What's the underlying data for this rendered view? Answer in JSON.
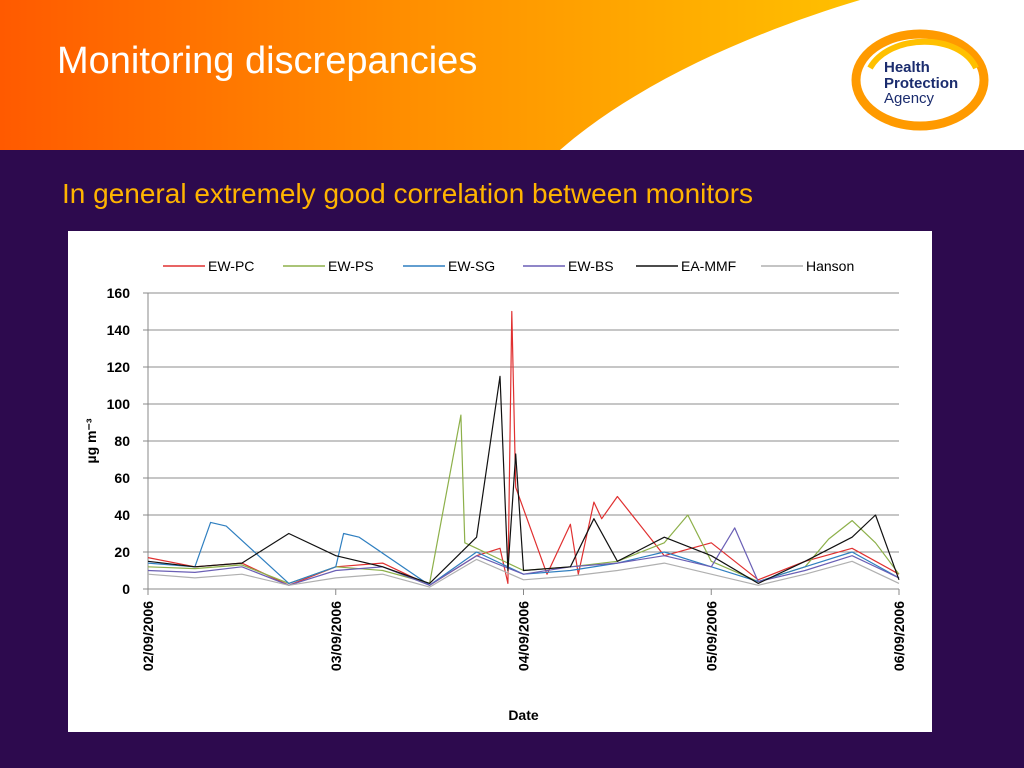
{
  "slide": {
    "title": "Monitoring discrepancies",
    "subtitle": "In general extremely good correlation between monitors"
  },
  "logo": {
    "line1": "Health",
    "line2": "Protection",
    "line3": "Agency"
  },
  "colors": {
    "background": "#2d0a4e",
    "header_orange": "#ff7a00",
    "header_yellow": "#ffb400",
    "subtitle": "#ffb400",
    "logo_blue": "#1b2c6e"
  },
  "chart_data": {
    "type": "line",
    "xlabel": "Date",
    "ylabel": "µg m⁻³",
    "ylim": [
      0,
      160
    ],
    "yticks": [
      0,
      20,
      40,
      60,
      80,
      100,
      120,
      140,
      160
    ],
    "xticks": [
      "02/09/2006",
      "03/09/2006",
      "04/09/2006",
      "05/09/2006",
      "06/09/2006"
    ],
    "xlim": [
      "02/09/2006",
      "06/09/2006"
    ],
    "grid": "horizontal",
    "legend_position": "top",
    "series": [
      {
        "name": "EW-PC",
        "color": "#e03030",
        "x": [
          "02/09/2006 00:00",
          "02/09/2006 06:00",
          "02/09/2006 12:00",
          "02/09/2006 18:00",
          "03/09/2006 00:00",
          "03/09/2006 06:00",
          "03/09/2006 12:00",
          "03/09/2006 18:00",
          "03/09/2006 21:00",
          "03/09/2006 22:00",
          "03/09/2006 22:30",
          "03/09/2006 23:00",
          "04/09/2006 03:00",
          "04/09/2006 06:00",
          "04/09/2006 07:00",
          "04/09/2006 09:00",
          "04/09/2006 10:00",
          "04/09/2006 12:00",
          "04/09/2006 18:00",
          "05/09/2006 00:00",
          "05/09/2006 06:00",
          "05/09/2006 12:00",
          "05/09/2006 18:00",
          "06/09/2006 00:00"
        ],
        "values": [
          17,
          12,
          14,
          2,
          12,
          14,
          2,
          18,
          22,
          3,
          150,
          55,
          8,
          35,
          8,
          47,
          38,
          50,
          18,
          25,
          5,
          15,
          22,
          8
        ]
      },
      {
        "name": "EW-PS",
        "color": "#8db04a",
        "x": [
          "02/09/2006 00:00",
          "02/09/2006 06:00",
          "02/09/2006 12:00",
          "02/09/2006 18:00",
          "03/09/2006 00:00",
          "03/09/2006 06:00",
          "03/09/2006 12:00",
          "03/09/2006 16:00",
          "03/09/2006 16:30",
          "03/09/2006 18:00",
          "04/09/2006 00:00",
          "04/09/2006 06:00",
          "04/09/2006 12:00",
          "04/09/2006 18:00",
          "04/09/2006 21:00",
          "05/09/2006 00:00",
          "05/09/2006 06:00",
          "05/09/2006 12:00",
          "05/09/2006 15:00",
          "05/09/2006 18:00",
          "05/09/2006 21:00",
          "06/09/2006 00:00"
        ],
        "values": [
          12,
          11,
          13,
          3,
          12,
          10,
          3,
          94,
          25,
          22,
          10,
          12,
          15,
          25,
          40,
          15,
          4,
          12,
          27,
          37,
          25,
          8
        ]
      },
      {
        "name": "EW-SG",
        "color": "#2f7fc0",
        "x": [
          "02/09/2006 00:00",
          "02/09/2006 06:00",
          "02/09/2006 08:00",
          "02/09/2006 10:00",
          "02/09/2006 18:00",
          "03/09/2006 00:00",
          "03/09/2006 01:00",
          "03/09/2006 03:00",
          "03/09/2006 12:00",
          "03/09/2006 18:00",
          "04/09/2006 00:00",
          "04/09/2006 06:00",
          "04/09/2006 12:00",
          "04/09/2006 18:00",
          "05/09/2006 00:00",
          "05/09/2006 06:00",
          "05/09/2006 12:00",
          "05/09/2006 18:00",
          "06/09/2006 00:00"
        ],
        "values": [
          14,
          12,
          36,
          34,
          3,
          12,
          30,
          28,
          2,
          20,
          8,
          10,
          14,
          20,
          12,
          4,
          12,
          20,
          6
        ]
      },
      {
        "name": "EW-BS",
        "color": "#6a5fb5",
        "x": [
          "02/09/2006 00:00",
          "02/09/2006 06:00",
          "02/09/2006 12:00",
          "02/09/2006 18:00",
          "03/09/2006 00:00",
          "03/09/2006 06:00",
          "03/09/2006 12:00",
          "03/09/2006 18:00",
          "04/09/2006 00:00",
          "04/09/2006 06:00",
          "04/09/2006 12:00",
          "04/09/2006 18:00",
          "05/09/2006 00:00",
          "05/09/2006 03:00",
          "05/09/2006 06:00",
          "05/09/2006 12:00",
          "05/09/2006 18:00",
          "06/09/2006 00:00"
        ],
        "values": [
          10,
          9,
          12,
          2,
          10,
          12,
          2,
          18,
          8,
          12,
          14,
          18,
          12,
          33,
          4,
          10,
          18,
          6
        ]
      },
      {
        "name": "EA-MMF",
        "color": "#111111",
        "x": [
          "02/09/2006 00:00",
          "02/09/2006 06:00",
          "02/09/2006 12:00",
          "02/09/2006 18:00",
          "03/09/2006 00:00",
          "03/09/2006 06:00",
          "03/09/2006 12:00",
          "03/09/2006 18:00",
          "03/09/2006 21:00",
          "03/09/2006 22:00",
          "03/09/2006 23:00",
          "04/09/2006 00:00",
          "04/09/2006 06:00",
          "04/09/2006 09:00",
          "04/09/2006 12:00",
          "04/09/2006 18:00",
          "05/09/2006 00:00",
          "05/09/2006 06:00",
          "05/09/2006 12:00",
          "05/09/2006 18:00",
          "05/09/2006 21:00",
          "06/09/2006 00:00"
        ],
        "values": [
          15,
          12,
          14,
          30,
          18,
          12,
          3,
          28,
          115,
          10,
          73,
          10,
          12,
          38,
          15,
          28,
          18,
          3,
          15,
          28,
          40,
          5
        ]
      },
      {
        "name": "Hanson",
        "color": "#b0b0b0",
        "x": [
          "02/09/2006 00:00",
          "02/09/2006 06:00",
          "02/09/2006 12:00",
          "02/09/2006 18:00",
          "03/09/2006 00:00",
          "03/09/2006 06:00",
          "03/09/2006 12:00",
          "03/09/2006 18:00",
          "04/09/2006 00:00",
          "04/09/2006 06:00",
          "04/09/2006 12:00",
          "04/09/2006 18:00",
          "05/09/2006 00:00",
          "05/09/2006 06:00",
          "05/09/2006 12:00",
          "05/09/2006 18:00",
          "06/09/2006 00:00"
        ],
        "values": [
          8,
          6,
          8,
          2,
          6,
          8,
          1,
          16,
          5,
          7,
          10,
          14,
          8,
          2,
          8,
          15,
          3
        ]
      }
    ]
  }
}
